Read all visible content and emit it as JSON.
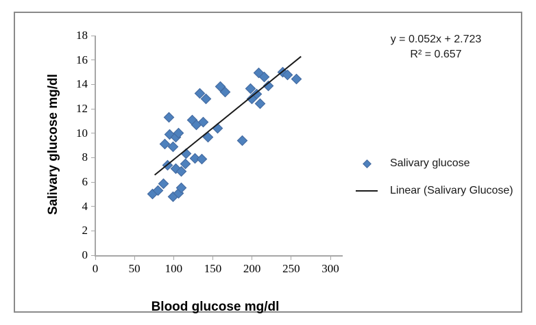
{
  "chart_data": {
    "type": "scatter",
    "title": "",
    "xlabel": "Blood glucose mg/dl",
    "ylabel": "Salivary glucose mg/dl",
    "xlim": [
      0,
      300
    ],
    "ylim": [
      0,
      18
    ],
    "x_ticks": [
      0,
      50,
      100,
      150,
      200,
      250,
      300
    ],
    "y_ticks": [
      0,
      2,
      4,
      6,
      8,
      10,
      12,
      14,
      16,
      18
    ],
    "grid": false,
    "legend_position": "right-middle",
    "annotation": {
      "equation": "y = 0.052x + 2.723",
      "r_squared": "R² = 0.657"
    },
    "series": [
      {
        "name": "Salivary glucose",
        "type": "scatter",
        "marker": "diamond",
        "color": "#4E81BD",
        "points": [
          [
            73,
            5.0
          ],
          [
            80,
            5.3
          ],
          [
            87,
            5.85
          ],
          [
            99,
            4.8
          ],
          [
            106,
            5.1
          ],
          [
            110,
            5.55
          ],
          [
            92,
            7.35
          ],
          [
            103,
            7.1
          ],
          [
            110,
            6.85
          ],
          [
            115,
            7.5
          ],
          [
            116,
            8.35
          ],
          [
            127,
            7.95
          ],
          [
            136,
            7.9
          ],
          [
            89,
            9.1
          ],
          [
            95,
            9.9
          ],
          [
            103,
            9.65
          ],
          [
            99,
            8.9
          ],
          [
            94,
            11.3
          ],
          [
            106,
            10.0
          ],
          [
            124,
            11.1
          ],
          [
            129,
            10.7
          ],
          [
            138,
            10.9
          ],
          [
            156,
            10.4
          ],
          [
            144,
            9.7
          ],
          [
            188,
            9.4
          ],
          [
            133,
            13.25
          ],
          [
            141,
            12.8
          ],
          [
            160,
            13.8
          ],
          [
            166,
            13.35
          ],
          [
            198,
            13.65
          ],
          [
            206,
            13.2
          ],
          [
            200,
            12.8
          ],
          [
            210,
            12.4
          ],
          [
            221,
            13.9
          ],
          [
            209,
            14.95
          ],
          [
            216,
            14.6
          ],
          [
            239,
            15.0
          ],
          [
            245,
            14.8
          ],
          [
            257,
            14.45
          ]
        ]
      },
      {
        "name": "Linear (Salivary Glucose)",
        "type": "line",
        "color": "#1a1a1a",
        "slope": 0.052,
        "intercept": 2.723,
        "x_range": [
          75,
          262
        ]
      }
    ]
  },
  "colors": {
    "marker_fill": "#4E81BD",
    "marker_edge": "#44699D",
    "axis": "#A6A6A6",
    "frame_border": "#8A8A8A",
    "text": "#000000",
    "background": "#FFFFFF"
  }
}
